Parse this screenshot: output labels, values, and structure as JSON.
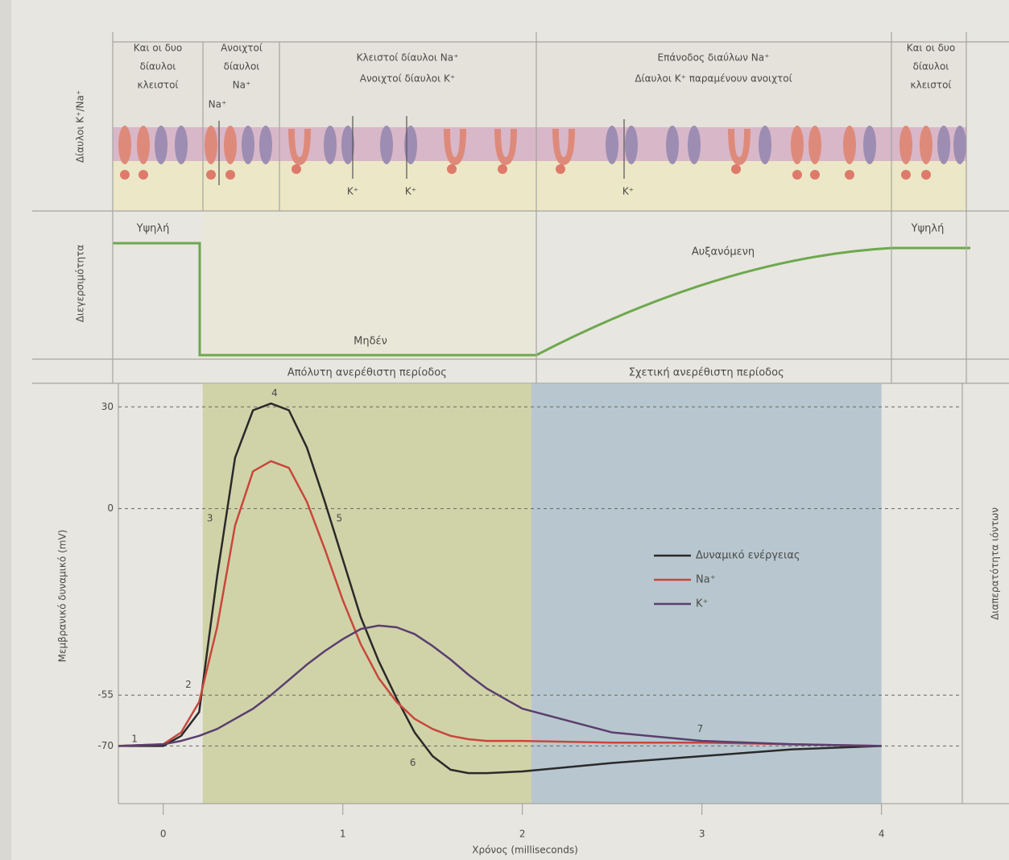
{
  "channel_panel": {
    "axis_label": "Δίαυλοι K⁺/Na⁺",
    "columns": [
      [
        "Και οι δυο",
        "δίαυλοι",
        "κλειστοί"
      ],
      [
        "Ανοιχτοί",
        "δίαυλοι",
        "Na⁺"
      ],
      [
        "Κλειστοί δίαυλοι Na⁺",
        "Ανοιχτοί δίαυλοι K⁺"
      ],
      [
        "Επάνοδος διαύλων Na⁺",
        "Δίαυλοι K⁺ παραμένουν ανοιχτοί"
      ],
      [
        "Και οι δυο",
        "δίαυλοι",
        "κλειστοί"
      ]
    ],
    "ion_labels": [
      "Na⁺",
      "K⁺",
      "K⁺",
      "K⁺"
    ]
  },
  "excitability_panel": {
    "axis_label": "Διεγερσιμότητα",
    "labels": [
      "Υψηλή",
      "Μηδέν",
      "Αυξανόμενη",
      "Υψηλή"
    ]
  },
  "chart_data": {
    "type": "line",
    "x_label": "Χρόνος (milliseconds)",
    "y_label": "Μεμβρανικό δυναμικό (mV)",
    "y2_label": "Διαπερατότητα ιόντων",
    "x": [
      -0.25,
      0,
      0.1,
      0.2,
      0.3,
      0.4,
      0.5,
      0.6,
      0.7,
      0.8,
      0.9,
      1.0,
      1.1,
      1.2,
      1.3,
      1.4,
      1.5,
      1.6,
      1.7,
      1.8,
      2.0,
      2.5,
      3,
      3.5,
      4
    ],
    "series": [
      {
        "name": "Δυναμικό ενέργειας",
        "color": "#2a2a2a",
        "values": [
          -70,
          -70,
          -67,
          -60,
          -20,
          15,
          29,
          31,
          29,
          18,
          2,
          -15,
          -32,
          -45,
          -56,
          -66,
          -73,
          -77,
          -78,
          -78,
          -77.5,
          -75,
          -73,
          -71,
          -70
        ]
      },
      {
        "name": "Na⁺",
        "color": "#c8473d",
        "values": [
          -70,
          -69.5,
          -66,
          -57,
          -35,
          -5,
          11,
          14,
          12,
          2,
          -12,
          -27,
          -40,
          -50,
          -57,
          -62,
          -65,
          -67,
          -68,
          -68.5,
          -68.5,
          -69,
          -69,
          -69.5,
          -70
        ]
      },
      {
        "name": "K⁺",
        "color": "#5a3f6e",
        "values": [
          -70,
          -69.5,
          -68.5,
          -67,
          -65,
          -62,
          -59,
          -55,
          -50.5,
          -46,
          -42,
          -38.5,
          -35.5,
          -34.5,
          -35,
          -37,
          -40.5,
          -44.5,
          -49,
          -53,
          -59,
          -66,
          -68.5,
          -69.5,
          -70
        ]
      }
    ],
    "xlim": [
      -0.25,
      4.45
    ],
    "ylim": [
      -87,
      36
    ],
    "xticks": [
      0,
      1,
      2,
      3,
      4
    ],
    "yticks": [
      30,
      0,
      -55,
      -70
    ],
    "grid": true,
    "regions": [
      {
        "label": "Απόλυτη ανερέθιστη περίοδος",
        "x": [
          0.22,
          2.05
        ],
        "color": "#c8cc95"
      },
      {
        "label": "Σχετική ανερέθιστη περίοδος",
        "x": [
          2.05,
          4.0
        ],
        "color": "#a8bcca"
      }
    ],
    "annotations": [
      {
        "text": "1",
        "x": -0.16,
        "y": -68
      },
      {
        "text": "2",
        "x": 0.14,
        "y": -52
      },
      {
        "text": "3",
        "x": 0.26,
        "y": -3
      },
      {
        "text": "4",
        "x": 0.62,
        "y": 34
      },
      {
        "text": "5",
        "x": 0.98,
        "y": -3
      },
      {
        "text": "6",
        "x": 1.39,
        "y": -75
      },
      {
        "text": "7",
        "x": 2.99,
        "y": -65
      }
    ]
  }
}
